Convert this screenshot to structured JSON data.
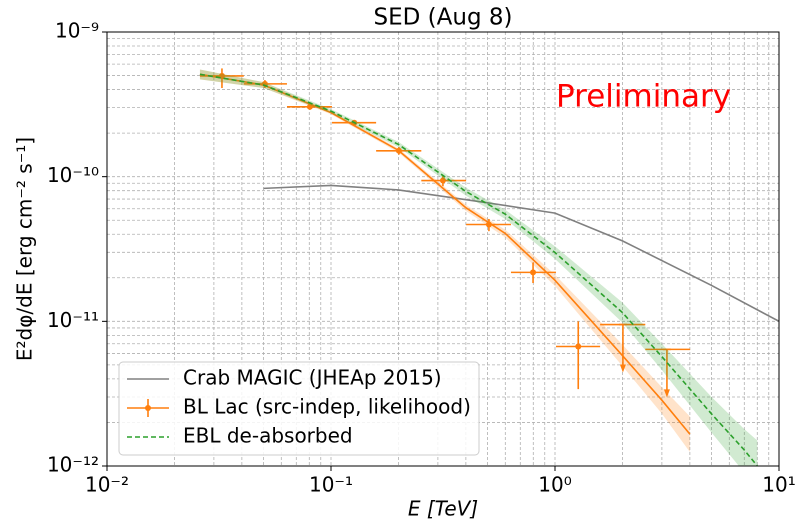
{
  "chart_data": {
    "type": "line",
    "title": "SED (Aug 8)",
    "xlabel": "E [TeV]",
    "ylabel": "E²dφ/dE [erg cm⁻² s⁻¹]",
    "xscale": "log",
    "yscale": "log",
    "xlim": [
      0.01,
      10
    ],
    "ylim": [
      1e-12,
      1e-09
    ],
    "xticks": [
      {
        "value": 0.01,
        "label": "10⁻²"
      },
      {
        "value": 0.1,
        "label": "10⁻¹"
      },
      {
        "value": 1,
        "label": "10⁰"
      },
      {
        "value": 10,
        "label": "10¹"
      }
    ],
    "yticks": [
      {
        "value": 1e-12,
        "label": "10⁻¹²"
      },
      {
        "value": 1e-11,
        "label": "10⁻¹¹"
      },
      {
        "value": 1e-10,
        "label": "10⁻¹⁰"
      },
      {
        "value": 1e-09,
        "label": "10⁻⁹"
      }
    ],
    "grid": true,
    "minor_grid": true,
    "legend": "lower left",
    "annotation": {
      "text": "Preliminary",
      "color": "#ff0000"
    },
    "series": [
      {
        "name": "Crab MAGIC (JHEAp 2015)",
        "style": "solid",
        "color": "#808080",
        "x": [
          0.05,
          0.1,
          0.2,
          0.5,
          1,
          2,
          5,
          10
        ],
        "values": [
          8.3e-11,
          8.7e-11,
          8.1e-11,
          6.6e-11,
          5.6e-11,
          3.6e-11,
          1.77e-11,
          1e-11
        ]
      },
      {
        "style": "solid",
        "color": "#ff7f0e",
        "x": [
          0.026,
          0.05,
          0.1,
          0.2,
          0.4,
          0.6,
          1,
          2,
          3,
          4
        ],
        "values": [
          5.1e-10,
          4.3e-10,
          2.77e-10,
          1.52e-10,
          6.1e-11,
          4.05e-11,
          1.92e-11,
          5.8e-12,
          2.85e-12,
          1.66e-12
        ],
        "band_low": [
          4.7e-10,
          4.1e-10,
          2.7e-10,
          1.47e-10,
          5.8e-11,
          3.8e-11,
          1.75e-11,
          4.9e-12,
          2.3e-12,
          1.25e-12
        ],
        "band_high": [
          5.5e-10,
          4.5e-10,
          2.85e-10,
          1.57e-10,
          6.4e-11,
          4.3e-11,
          2.1e-11,
          6.9e-12,
          3.5e-12,
          2.2e-12
        ]
      },
      {
        "name": "BL Lac (src-indep, likelihood)",
        "style": "errorbar",
        "color": "#ff7f0e",
        "x": [
          0.0326,
          0.0507,
          0.0805,
          0.127,
          0.201,
          0.316,
          0.507,
          0.798,
          1.27,
          2.01,
          3.16
        ],
        "values": [
          4.97e-10,
          4.38e-10,
          3.04e-10,
          2.36e-10,
          1.51e-10,
          9.4e-11,
          4.67e-11,
          2.18e-11,
          6.7e-12,
          9.5e-12,
          6.4e-12
        ],
        "x_low": [
          0.026,
          0.0408,
          0.0636,
          0.101,
          0.159,
          0.253,
          0.401,
          0.636,
          1.01,
          1.59,
          2.53
        ],
        "x_high": [
          0.0408,
          0.0636,
          0.101,
          0.159,
          0.253,
          0.401,
          0.636,
          1.01,
          1.59,
          2.53,
          4.01
        ],
        "y_low": [
          4.1e-10,
          4.1e-10,
          2.9e-10,
          2.26e-10,
          1.42e-10,
          8.6e-11,
          4.2e-11,
          1.84e-11,
          3.4e-12,
          null,
          null
        ],
        "y_high": [
          5.6e-10,
          4.65e-10,
          3.2e-10,
          2.46e-10,
          1.6e-10,
          1.02e-10,
          5.1e-11,
          2.55e-11,
          1e-11,
          null,
          null
        ],
        "upper_limit": [
          false,
          false,
          false,
          false,
          false,
          false,
          false,
          false,
          false,
          true,
          true
        ]
      },
      {
        "name": "EBL de-absorbed",
        "style": "dashed",
        "color": "#2ca02c",
        "x": [
          0.026,
          0.05,
          0.1,
          0.2,
          0.4,
          0.6,
          1,
          2,
          3,
          5,
          7,
          8
        ],
        "values": [
          5.1e-10,
          4.3e-10,
          2.84e-10,
          1.67e-10,
          7.9e-11,
          5.5e-11,
          2.99e-11,
          1.15e-11,
          5.7e-12,
          2.29e-12,
          1.29e-12,
          1e-12
        ],
        "band_low": [
          4.7e-10,
          4.1e-10,
          2.75e-10,
          1.6e-10,
          7.4e-11,
          5.1e-11,
          2.7e-11,
          9.8e-12,
          4.6e-12,
          1.7e-12,
          9e-13,
          7.5e-13
        ],
        "band_high": [
          5.5e-10,
          4.5e-10,
          2.93e-10,
          1.74e-10,
          8.4e-11,
          5.9e-11,
          3.3e-11,
          1.35e-11,
          7e-12,
          3e-12,
          1.8e-12,
          1.5e-12
        ]
      }
    ]
  }
}
